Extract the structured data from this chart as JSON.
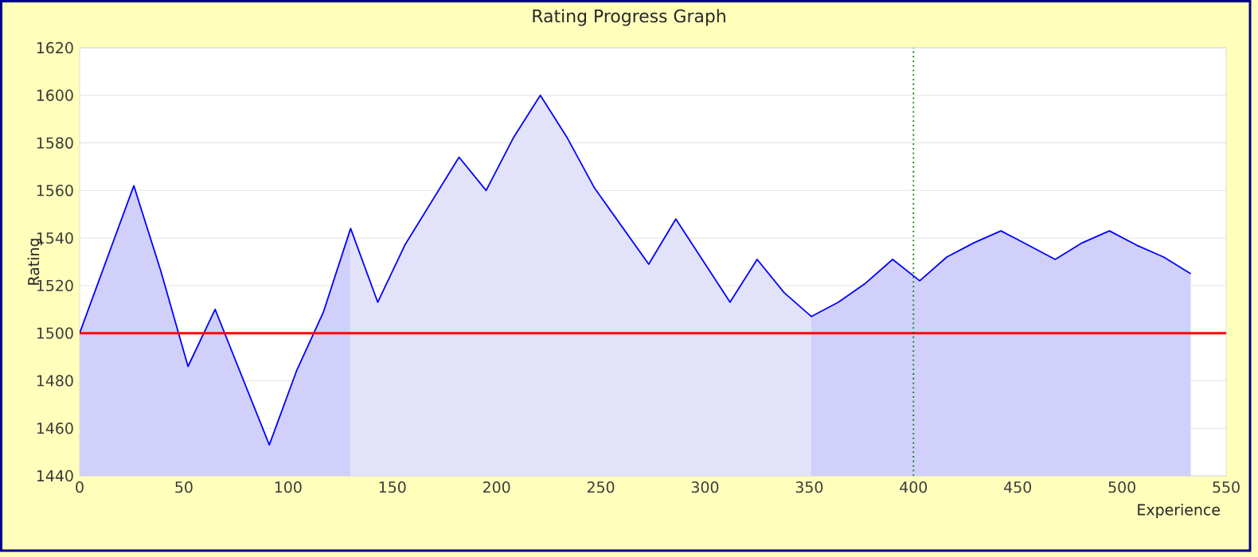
{
  "chart_data": {
    "type": "line",
    "title": "Rating Progress Graph",
    "xlabel": "Experience",
    "ylabel": "Rating",
    "xlim": [
      0,
      550
    ],
    "xticks": [
      0,
      50,
      100,
      150,
      200,
      250,
      300,
      350,
      400,
      450,
      500,
      550
    ],
    "ylim": [
      1440,
      1620
    ],
    "yticks": [
      1440,
      1460,
      1480,
      1500,
      1520,
      1540,
      1560,
      1580,
      1600,
      1620
    ],
    "grid": "y",
    "series": [
      {
        "type": "area",
        "color": "#d0d0fa",
        "x": [
          0,
          26,
          39,
          52,
          65,
          91,
          104,
          117,
          130
        ],
        "values": [
          1500,
          1562,
          1526,
          1486,
          1510,
          1453,
          1484,
          1509,
          1544
        ]
      },
      {
        "type": "area",
        "color": "#e2e2fa",
        "x": [
          130,
          143,
          156,
          182,
          195,
          208,
          221,
          234,
          247,
          273,
          286,
          312,
          325,
          338,
          351
        ],
        "values": [
          1544,
          1513,
          1537,
          1574,
          1560,
          1582,
          1600,
          1582,
          1561,
          1529,
          1548,
          1513,
          1531,
          1517,
          1507
        ]
      },
      {
        "type": "area",
        "color": "#d0d0fa",
        "x": [
          351,
          364,
          377,
          390,
          403,
          416,
          429,
          442,
          455,
          468,
          481,
          494,
          507,
          520,
          533
        ],
        "values": [
          1507,
          1513,
          1521,
          1531,
          1522,
          1532,
          1538,
          1543,
          1537,
          1531,
          1538,
          1543,
          1537,
          1532,
          1525
        ]
      },
      {
        "color": "#0000ff",
        "x": [
          0,
          26,
          39,
          52,
          65,
          91,
          104,
          117,
          130,
          143,
          156,
          182,
          195,
          208,
          221,
          234,
          247,
          273,
          286,
          312,
          325,
          338,
          351,
          364,
          377,
          390,
          403,
          416,
          429,
          442,
          455,
          468,
          481,
          494,
          507,
          520,
          533
        ],
        "values": [
          1500,
          1562,
          1526,
          1486,
          1510,
          1453,
          1484,
          1509,
          1544,
          1513,
          1537,
          1574,
          1560,
          1582,
          1600,
          1582,
          1561,
          1529,
          1548,
          1513,
          1531,
          1517,
          1507,
          1513,
          1521,
          1531,
          1522,
          1532,
          1538,
          1543,
          1537,
          1531,
          1538,
          1543,
          1537,
          1532,
          1525
        ]
      }
    ],
    "ref_lines": [
      {
        "axis": "y",
        "value": 1500,
        "color": "#ff0000",
        "line_style": "solid"
      },
      {
        "axis": "x",
        "value": 400,
        "color": "#007700",
        "line_style": "dotted"
      }
    ]
  }
}
